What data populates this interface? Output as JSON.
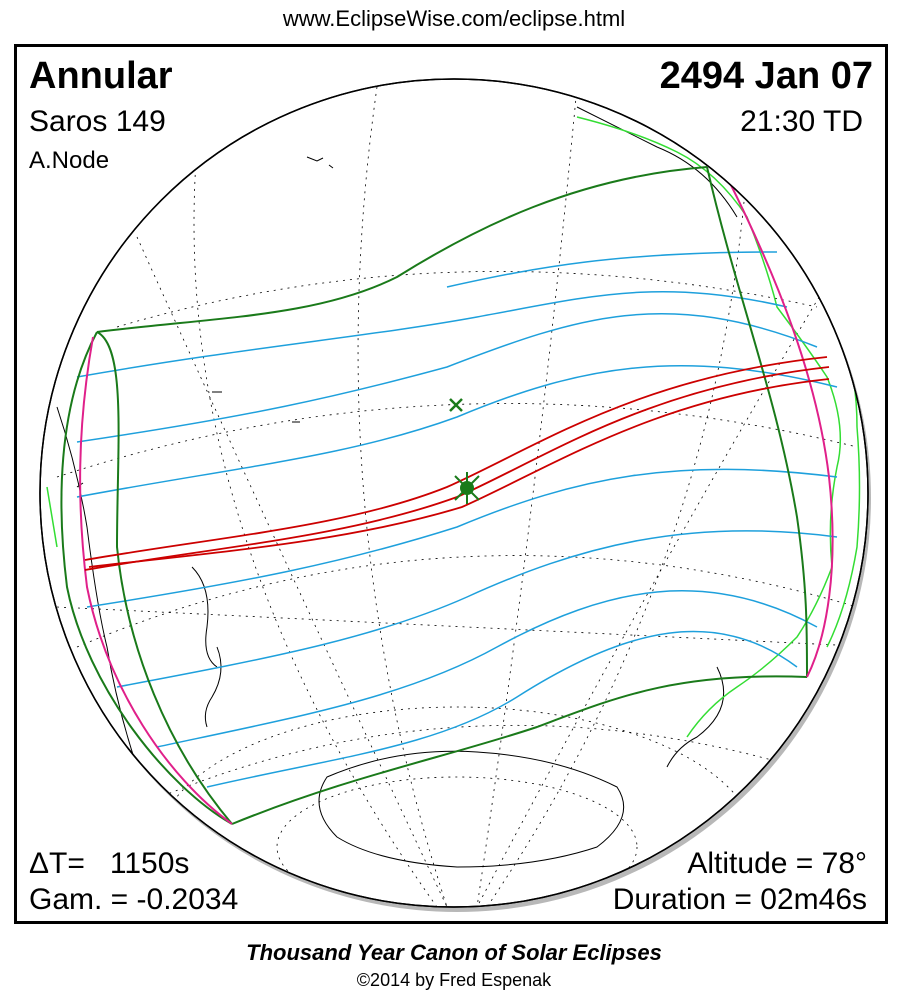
{
  "header": {
    "url": "www.EclipseWise.com/eclipse.html"
  },
  "eclipse": {
    "type": "Annular",
    "date": "2494 Jan 07",
    "saros": "Saros 149",
    "time": "21:30 TD",
    "node": "A.Node",
    "delta_t": "ΔT=   1150s",
    "gamma": "Gam. = -0.2034",
    "altitude": "Altitude = 78°",
    "duration": "Duration = 02m46s"
  },
  "colors": {
    "central_path": "#cc0000",
    "penumbra_limits": "#1a7a1a",
    "time_lines": "#1ea0dc",
    "rise_set_curves": "#e0208a",
    "coastlines": "#000000",
    "coastlines_alt": "#33dd33",
    "grid": "#000000"
  },
  "footer": {
    "title": "Thousand Year Canon of Solar Eclipses",
    "copyright": "©2014 by Fred Espenak"
  }
}
